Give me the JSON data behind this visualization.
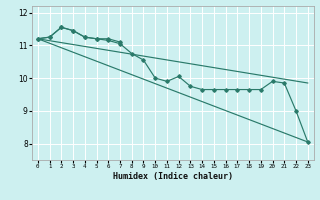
{
  "title": "",
  "xlabel": "Humidex (Indice chaleur)",
  "bg_color": "#cdf0f0",
  "line_color": "#2a7a6a",
  "grid_color": "#ffffff",
  "xlim": [
    -0.5,
    23.5
  ],
  "ylim": [
    7.5,
    12.2
  ],
  "yticks": [
    8,
    9,
    10,
    11,
    12
  ],
  "xticks": [
    0,
    1,
    2,
    3,
    4,
    5,
    6,
    7,
    8,
    9,
    10,
    11,
    12,
    13,
    14,
    15,
    16,
    17,
    18,
    19,
    20,
    21,
    22,
    23
  ],
  "line_zigzag": {
    "x": [
      0,
      1,
      2,
      3,
      4,
      5,
      6,
      7,
      8,
      9,
      10,
      11,
      12,
      13,
      14,
      15,
      16,
      17,
      18,
      19,
      20,
      21,
      22,
      23
    ],
    "y": [
      11.2,
      11.25,
      11.55,
      11.45,
      11.25,
      11.2,
      11.15,
      11.05,
      10.75,
      10.55,
      10.0,
      9.9,
      10.05,
      9.75,
      9.65,
      9.65,
      9.65,
      9.65,
      9.65,
      9.65,
      9.9,
      9.85,
      9.0,
      8.05
    ]
  },
  "line_straight1": {
    "x": [
      0,
      23
    ],
    "y": [
      11.2,
      8.05
    ]
  },
  "line_straight2": {
    "x": [
      0,
      23
    ],
    "y": [
      11.2,
      9.85
    ]
  },
  "line_upper": {
    "x": [
      0,
      1,
      2,
      3,
      4,
      5,
      6,
      7
    ],
    "y": [
      11.2,
      11.25,
      11.55,
      11.45,
      11.25,
      11.2,
      11.2,
      11.1
    ]
  }
}
